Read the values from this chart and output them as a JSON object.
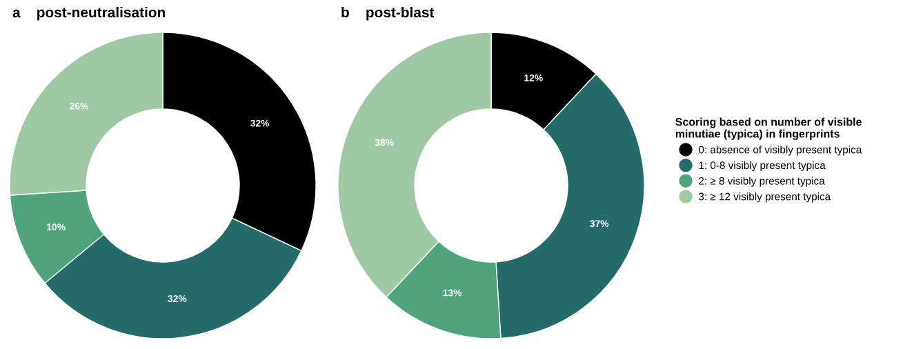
{
  "chart_data": [
    {
      "type": "donut",
      "title": "a    post-neutralisation",
      "categories": [
        "0: absence of visibly present typica",
        "1: 0-8 visibly present typica",
        "2: ≥ 8 visibly present typica",
        "3: ≥ 12 visibly present typica"
      ],
      "values": [
        32,
        32,
        10,
        26
      ],
      "colors": [
        "#000000",
        "#256b6a",
        "#4fa47e",
        "#9fc9a4"
      ],
      "value_labels": [
        "32%",
        "32%",
        "10%",
        "26%"
      ],
      "legend": "right",
      "legend_title": "Scoring based on number of visible\nminutiae (typica) in fingerprints"
    },
    {
      "type": "donut",
      "title": "b    post-blast",
      "categories": [
        null,
        null,
        null,
        null
      ],
      "values": [
        12,
        37,
        13,
        38
      ],
      "colors": [
        "#000000",
        "#256b6a",
        "#4fa47e",
        "#9fc9a4"
      ],
      "value_labels": [
        "12%",
        "37%",
        "13%",
        "38%"
      ],
      "legend": false
    }
  ]
}
